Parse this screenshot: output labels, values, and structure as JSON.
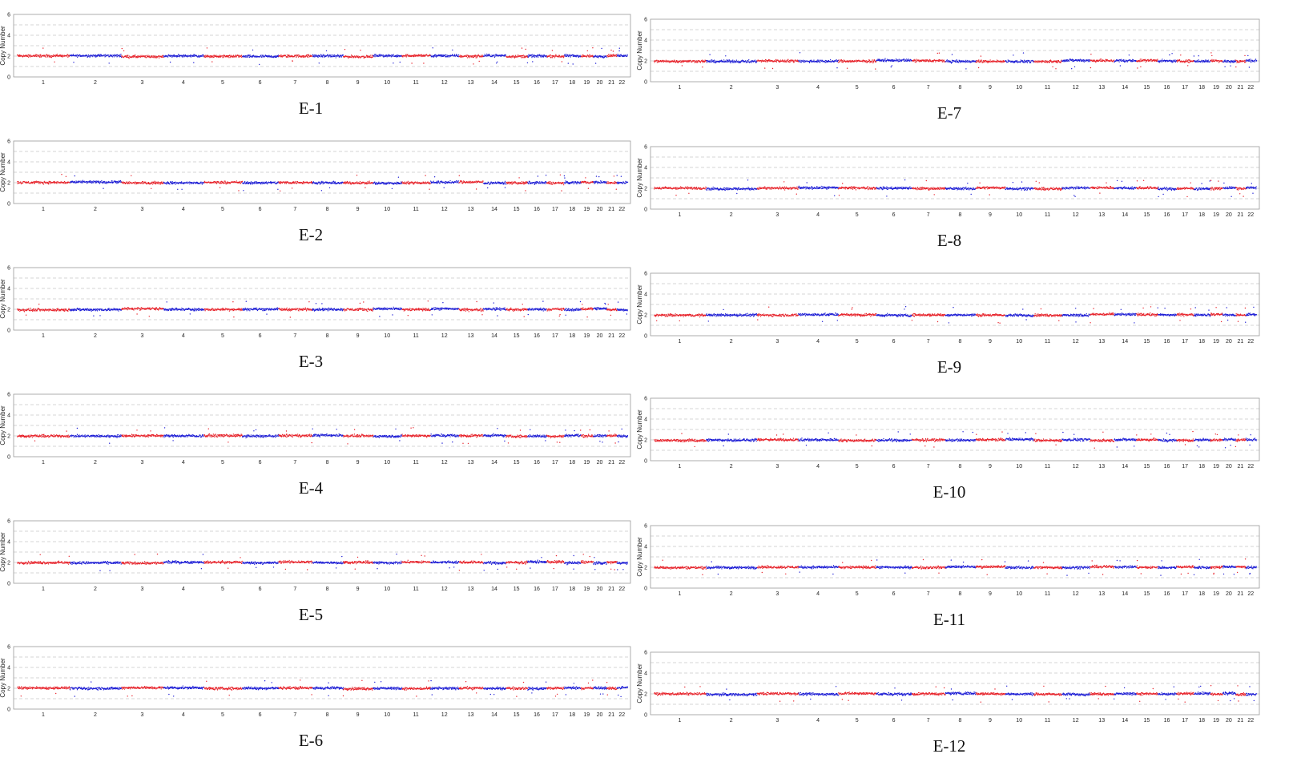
{
  "colors": {
    "odd_chromosome": "#e8232b",
    "even_chromosome": "#1f1fd6",
    "grid": "#c8c8c8",
    "frame": "#9a9a9a"
  },
  "chart_data": {
    "type": "scatter",
    "ylabel": "Copy Number",
    "ylim": [
      0,
      6
    ],
    "yticks": [
      "0",
      "2",
      "4",
      "6"
    ],
    "grid": true,
    "chromosomes": [
      "1",
      "2",
      "3",
      "4",
      "5",
      "6",
      "7",
      "8",
      "9",
      "10",
      "11",
      "12",
      "13",
      "14",
      "15",
      "16",
      "17",
      "18",
      "19",
      "20",
      "21",
      "22"
    ],
    "chromosome_relative_lengths": [
      249,
      243,
      198,
      191,
      181,
      171,
      159,
      146,
      141,
      136,
      135,
      134,
      115,
      107,
      102,
      90,
      83,
      78,
      59,
      63,
      48,
      51
    ],
    "panels": [
      {
        "label": "E-1",
        "baseline": 2
      },
      {
        "label": "E-2",
        "baseline": 2
      },
      {
        "label": "E-3",
        "baseline": 2
      },
      {
        "label": "E-4",
        "baseline": 2
      },
      {
        "label": "E-5",
        "baseline": 2
      },
      {
        "label": "E-6",
        "baseline": 2
      },
      {
        "label": "E-7",
        "baseline": 2
      },
      {
        "label": "E-8",
        "baseline": 2
      },
      {
        "label": "E-9",
        "baseline": 2
      },
      {
        "label": "E-10",
        "baseline": 2
      },
      {
        "label": "E-11",
        "baseline": 2
      },
      {
        "label": "E-12",
        "baseline": 2
      }
    ]
  }
}
